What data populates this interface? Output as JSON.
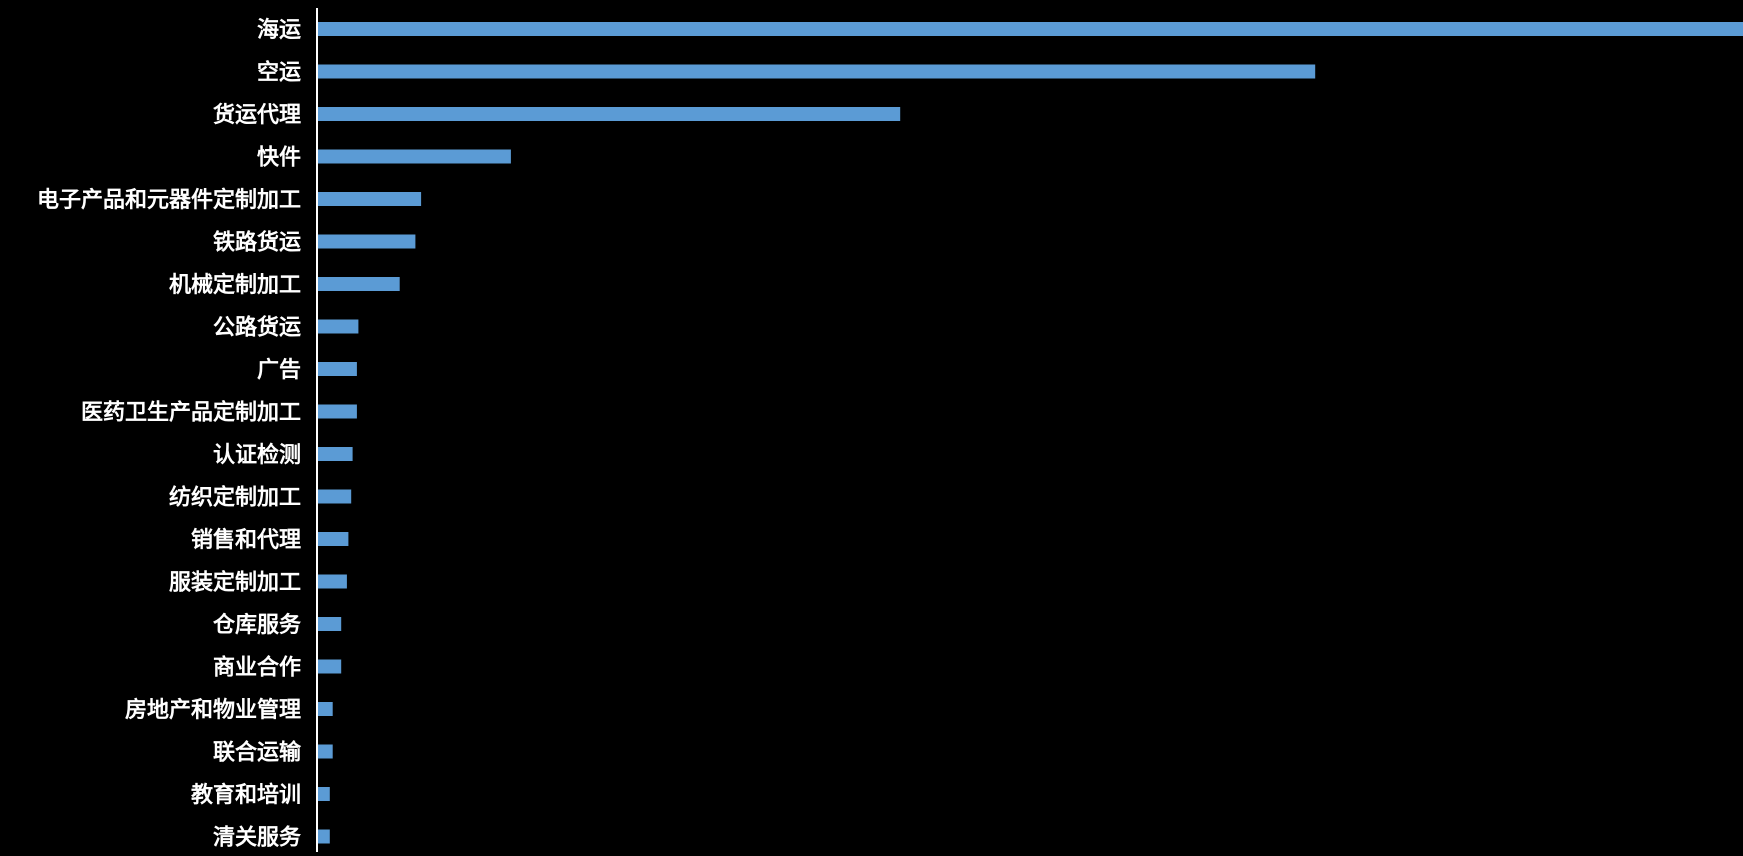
{
  "chart_data": {
    "type": "bar",
    "orientation": "horizontal",
    "categories": [
      "海运",
      "空运",
      "货运代理",
      "快件",
      "电子产品和元器件定制加工",
      "铁路货运",
      "机械定制加工",
      "公路货运",
      "广告",
      "医药卫生产品定制加工",
      "认证检测",
      "纺织定制加工",
      "销售和代理",
      "服装定制加工",
      "仓库服务",
      "商业合作",
      "房地产和物业管理",
      "联合运输",
      "教育和培训",
      "清关服务"
    ],
    "values": [
      1000,
      700,
      409,
      136,
      73,
      69,
      58,
      29,
      28,
      28,
      25,
      24,
      22,
      21,
      17,
      17,
      11,
      11,
      9,
      9
    ],
    "title": "",
    "xlabel": "",
    "ylabel": "",
    "xlim": [
      0,
      1000
    ],
    "grid": false,
    "legend": "none",
    "colors": {
      "background": "#000000",
      "bar": "#5B9BD5",
      "axis": "#FFFFFF",
      "label": "#FFFFFF"
    }
  }
}
